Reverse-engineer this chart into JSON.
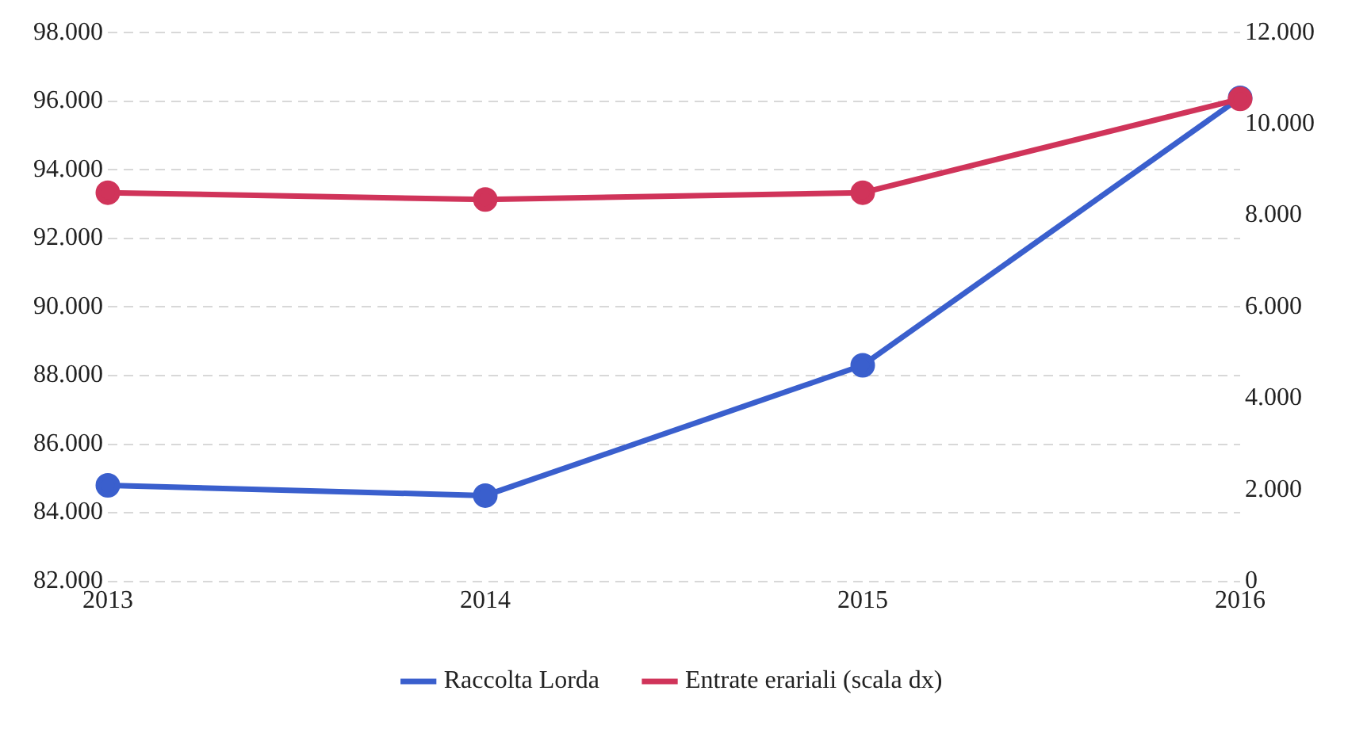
{
  "chart_data": {
    "type": "line",
    "x": [
      2013,
      2014,
      2015,
      2016
    ],
    "xlim": [
      2013,
      2016
    ],
    "xticks": [
      2013,
      2014,
      2015,
      2016
    ],
    "ylim": [
      82000,
      98000
    ],
    "yticks": [
      {
        "value": 82000,
        "label": "82.000"
      },
      {
        "value": 84000,
        "label": "84.000"
      },
      {
        "value": 86000,
        "label": "86.000"
      },
      {
        "value": 88000,
        "label": "88.000"
      },
      {
        "value": 90000,
        "label": "90.000"
      },
      {
        "value": 92000,
        "label": "92.000"
      },
      {
        "value": 94000,
        "label": "94.000"
      },
      {
        "value": 96000,
        "label": "96.000"
      },
      {
        "value": 98000,
        "label": "98.000"
      }
    ],
    "y2lim": [
      0,
      12000
    ],
    "y2ticks": [
      0,
      {
        "value": 2000,
        "label": "2.000"
      },
      {
        "value": 4000,
        "label": "4.000"
      },
      {
        "value": 6000,
        "label": "6.000"
      },
      {
        "value": 8000,
        "label": "8.000"
      },
      {
        "value": 10000,
        "label": "10.000"
      },
      {
        "value": 12000,
        "label": "12.000"
      }
    ],
    "series": [
      {
        "name": "Raccolta Lorda",
        "color": "#3a5fcd",
        "values": [
          84800,
          84500,
          88300,
          96100
        ]
      },
      {
        "name": "Entrate erariali (scala dx)",
        "color": "#d0345a",
        "axis": "y2",
        "values": [
          8500,
          8350,
          8500,
          10550
        ]
      }
    ],
    "grid": "y",
    "legend": "bottom",
    "marker": "circle",
    "line_style": "solid"
  }
}
